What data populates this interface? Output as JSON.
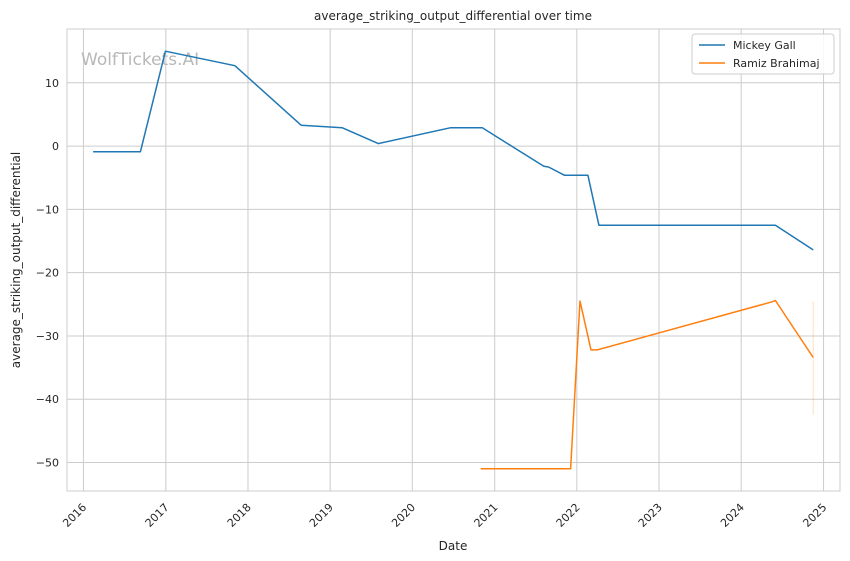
{
  "chart_data": {
    "type": "line",
    "title": "average_striking_output_differential over time",
    "xlabel": "Date",
    "ylabel": "average_striking_output_differential",
    "watermark": "WolfTickets.AI",
    "x_ticks": [
      "2016",
      "2017",
      "2018",
      "2019",
      "2020",
      "2021",
      "2022",
      "2023",
      "2024",
      "2025"
    ],
    "y_ticks": [
      10,
      0,
      -10,
      -20,
      -30,
      -40,
      -50
    ],
    "xlim": [
      "2015-10-20",
      "2025-03-15"
    ],
    "ylim": [
      -54.5,
      18.5
    ],
    "grid": true,
    "legend_position": "top-right",
    "series": [
      {
        "name": "Mickey Gall",
        "color": "#1f77b4",
        "points": [
          [
            "2016-02-13",
            -0.9
          ],
          [
            "2016-09-10",
            -0.9
          ],
          [
            "2016-12-30",
            15.0
          ],
          [
            "2017-11-04",
            12.7
          ],
          [
            "2018-08-25",
            3.3
          ],
          [
            "2019-02-23",
            2.9
          ],
          [
            "2019-08-03",
            0.4
          ],
          [
            "2020-06-20",
            2.9
          ],
          [
            "2020-11-07",
            2.9
          ],
          [
            "2021-08-07",
            -3.2
          ],
          [
            "2021-08-28",
            -3.3
          ],
          [
            "2021-11-06",
            -4.6
          ],
          [
            "2022-02-19",
            -4.6
          ],
          [
            "2022-04-09",
            -12.5
          ],
          [
            "2024-06-01",
            -12.5
          ],
          [
            "2024-11-16",
            -16.4
          ]
        ]
      },
      {
        "name": "Ramiz Brahimaj",
        "color": "#ff7f0e",
        "points": [
          [
            "2020-10-31",
            -51.0
          ],
          [
            "2021-12-04",
            -51.0
          ],
          [
            "2022-01-15",
            -24.5
          ],
          [
            "2022-03-05",
            -32.2
          ],
          [
            "2022-04-02",
            -32.2
          ],
          [
            "2024-05-18",
            -24.6
          ],
          [
            "2024-06-01",
            -24.4
          ],
          [
            "2024-11-16",
            -33.4
          ]
        ],
        "interval": {
          "x": "2024-11-16",
          "low": -42.5,
          "high": -24.5
        }
      }
    ]
  }
}
